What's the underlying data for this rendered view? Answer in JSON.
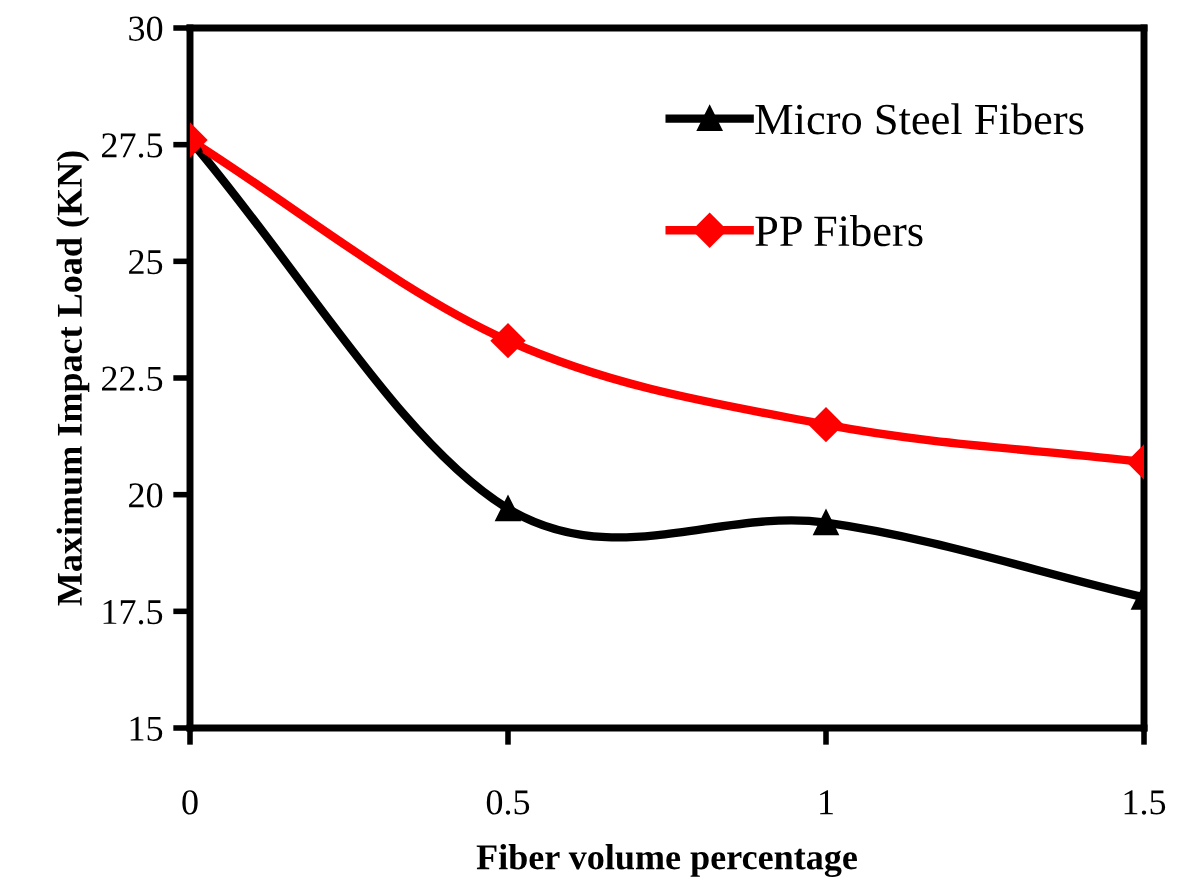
{
  "chart_data": {
    "type": "line",
    "xlabel": "Fiber volume percentage",
    "ylabel": "Maximum Impact Load (KN)",
    "x": [
      0,
      0.5,
      1,
      1.5
    ],
    "series": [
      {
        "name": "Micro Steel Fibers",
        "color": "#000000",
        "marker": "triangle",
        "values": [
          27.6,
          19.7,
          19.4,
          17.8
        ]
      },
      {
        "name": "PP Fibers",
        "color": "#ff0000",
        "marker": "diamond",
        "values": [
          27.6,
          23.3,
          21.5,
          20.7
        ]
      }
    ],
    "xlim": [
      0,
      1.5
    ],
    "xticks": [
      0,
      0.5,
      1,
      1.5
    ],
    "ylim": [
      15,
      30
    ],
    "yticks": [
      15,
      17.5,
      20,
      22.5,
      25,
      27.5,
      30
    ],
    "grid": false,
    "legend": "top right",
    "line_style": "solid"
  }
}
